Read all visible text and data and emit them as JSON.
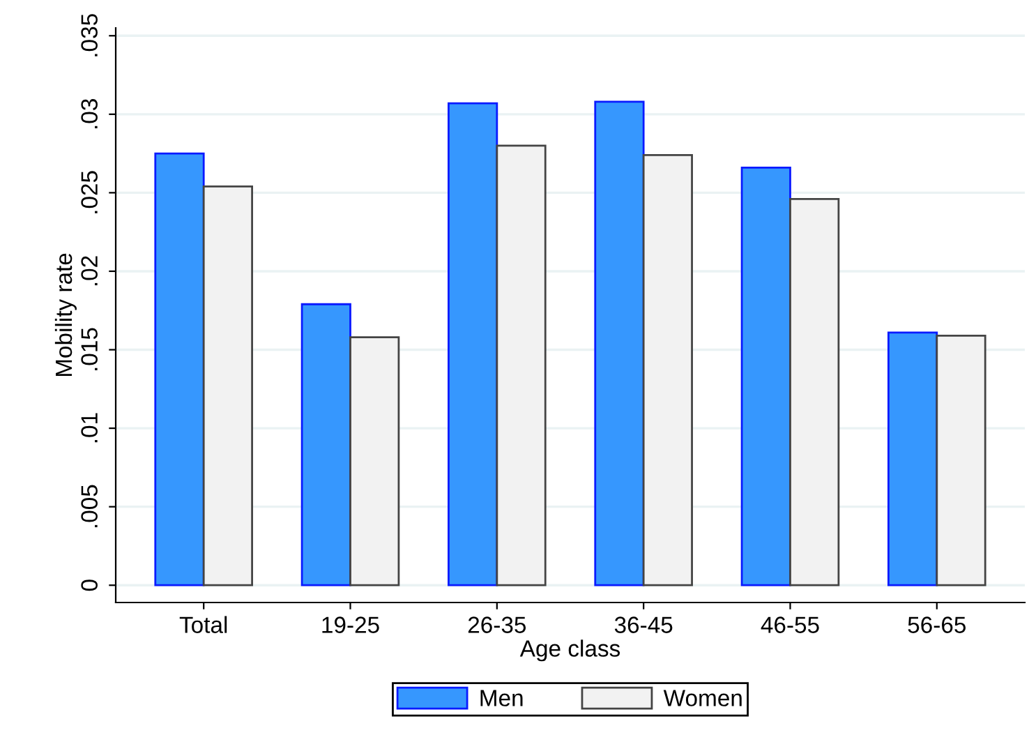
{
  "chart_data": {
    "type": "bar",
    "xlabel": "Age class",
    "ylabel": "Mobility rate",
    "categories": [
      "Total",
      "19-25",
      "26-35",
      "36-45",
      "46-55",
      "56-65"
    ],
    "series": [
      {
        "name": "Men",
        "color": "#3697fe",
        "values": [
          0.0275,
          0.0179,
          0.0307,
          0.0308,
          0.0266,
          0.0161
        ]
      },
      {
        "name": "Women",
        "color": "#f2f2f2",
        "values": [
          0.0254,
          0.0158,
          0.028,
          0.0274,
          0.0246,
          0.0159
        ]
      }
    ],
    "ylim": [
      -0.0011,
      0.0355
    ],
    "yticks": [
      {
        "value": 0,
        "label": "0"
      },
      {
        "value": 0.005,
        "label": ".005"
      },
      {
        "value": 0.01,
        "label": ".01"
      },
      {
        "value": 0.015,
        "label": ".015"
      },
      {
        "value": 0.02,
        "label": ".02"
      },
      {
        "value": 0.025,
        "label": ".025"
      },
      {
        "value": 0.03,
        "label": ".03"
      },
      {
        "value": 0.035,
        "label": ".035"
      }
    ],
    "grid": "y",
    "legend": "bottom"
  }
}
